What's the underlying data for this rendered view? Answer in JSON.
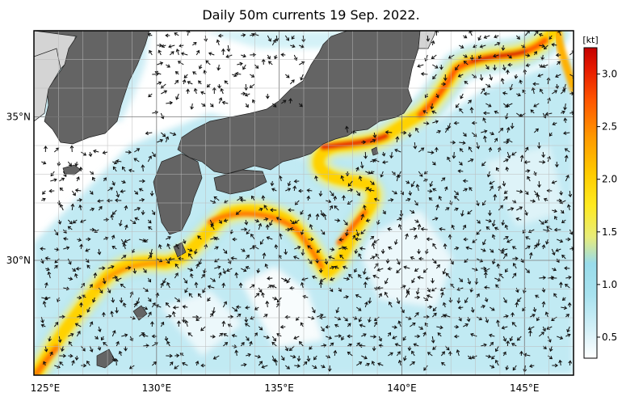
{
  "title": "Daily 50m currents 19 Sep. 2022.",
  "map": {
    "lon_range": [
      125,
      147
    ],
    "lat_range": [
      26,
      38
    ]
  },
  "lon_ticks": [
    {
      "value": 125,
      "label": "125°E"
    },
    {
      "value": 130,
      "label": "130°E"
    },
    {
      "value": 135,
      "label": "135°E"
    },
    {
      "value": 140,
      "label": "140°E"
    },
    {
      "value": 145,
      "label": "145°E"
    }
  ],
  "lat_ticks": [
    {
      "value": 30,
      "label": "30°N"
    },
    {
      "value": 35,
      "label": "35°N"
    }
  ],
  "colorbar": {
    "unit": "[kt]",
    "range": [
      0.3,
      3.25
    ],
    "ticks": [
      "0.5",
      "1.0",
      "1.5",
      "2.0",
      "2.5",
      "3.0"
    ],
    "tick_values": [
      0.5,
      1.0,
      1.5,
      2.0,
      2.5,
      3.0
    ],
    "stops": [
      {
        "v": 0.3,
        "color": "#ffffff"
      },
      {
        "v": 0.55,
        "color": "#d7f1f8"
      },
      {
        "v": 0.9,
        "color": "#a8e2ef"
      },
      {
        "v": 1.2,
        "color": "#99dceb"
      },
      {
        "v": 1.45,
        "color": "#e8ec7a"
      },
      {
        "v": 1.75,
        "color": "#ffea20"
      },
      {
        "v": 2.05,
        "color": "#ffcc00"
      },
      {
        "v": 2.4,
        "color": "#ff9900"
      },
      {
        "v": 2.75,
        "color": "#ff5500"
      },
      {
        "v": 3.05,
        "color": "#e61a00"
      },
      {
        "v": 3.25,
        "color": "#c40000"
      }
    ]
  },
  "colors": {
    "land": "#646464",
    "land_outer": "#d4d4d4",
    "frame": "#000000"
  }
}
